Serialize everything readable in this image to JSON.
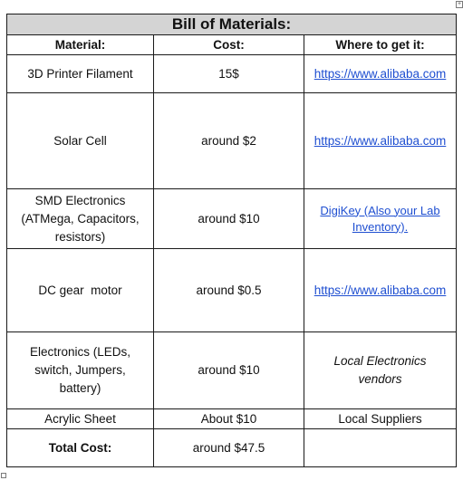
{
  "handles": {
    "move_glyph": "+"
  },
  "table": {
    "title": "Bill of Materials:",
    "headers": {
      "material": "Material:",
      "cost": "Cost:",
      "source": "Where to get it:"
    },
    "rows": [
      {
        "material": "3D Printer Filament",
        "cost": "15$",
        "source": "https://www.alibaba.com"
      },
      {
        "material": "Solar Cell",
        "cost": "around $2",
        "source": "https://www.alibaba.com"
      },
      {
        "material": "SMD Electronics (ATMega, Capacitors, resistors)",
        "cost": "around $10",
        "source": "DigiKey (Also your Lab Inventory)."
      },
      {
        "material": "DC gear  motor",
        "cost": "around $0.5",
        "source": "https://www.alibaba.com"
      },
      {
        "material": "Electronics (LEDs, switch, Jumpers, battery)",
        "cost": "around $10",
        "source": "Local Electronics vendors"
      },
      {
        "material": "Acrylic Sheet",
        "cost": "About $10",
        "source": "Local Suppliers"
      }
    ],
    "total": {
      "label": "Total Cost:",
      "value": "around $47.5",
      "source": ""
    }
  }
}
